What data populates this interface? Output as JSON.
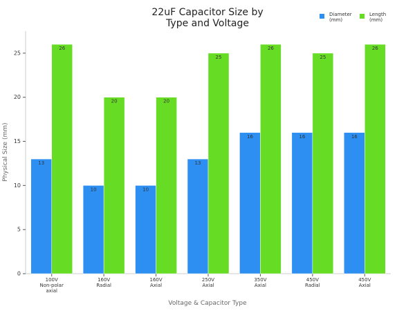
{
  "chart_data": {
    "type": "bar",
    "title": "22uF Capacitor Size by\nType and Voltage",
    "x_label": "Voltage & Capacitor Type",
    "y_label": "Physical Size (mm)",
    "categories": [
      "100V\nNon-polar\naxial",
      "160V\nRadial",
      "160V\nAxial",
      "250V\nAxial",
      "350V\nAxial",
      "450V\nRadial",
      "450V\nAxial"
    ],
    "series": [
      {
        "name": "Diameter\n(mm)",
        "color": "#2d8ff2",
        "values": [
          13,
          10,
          10,
          13,
          16,
          16,
          16
        ]
      },
      {
        "name": "Length\n(mm)",
        "color": "#67dc24",
        "values": [
          26,
          20,
          20,
          25,
          26,
          25,
          26
        ]
      }
    ],
    "ylim": [
      0,
      27.5
    ],
    "yticks": [
      0,
      5,
      10,
      15,
      20,
      25
    ],
    "grid": false
  }
}
